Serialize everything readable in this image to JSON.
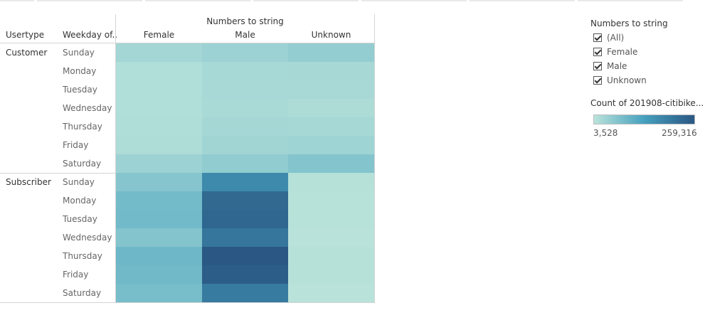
{
  "chart_data": {
    "type": "heatmap",
    "title": "Numbers to string",
    "row_headers": [
      "Usertype",
      "Weekday of.."
    ],
    "columns": [
      "Female",
      "Male",
      "Unknown"
    ],
    "usertypes": [
      {
        "name": "Customer",
        "rows": [
          {
            "day": "Sunday",
            "values": [
              28000,
              36000,
              46000
            ]
          },
          {
            "day": "Monday",
            "values": [
              14000,
              23000,
              24000
            ]
          },
          {
            "day": "Tuesday",
            "values": [
              13000,
              22000,
              22000
            ]
          },
          {
            "day": "Wednesday",
            "values": [
              13000,
              20000,
              17000
            ]
          },
          {
            "day": "Thursday",
            "values": [
              15000,
              26000,
              25000
            ]
          },
          {
            "day": "Friday",
            "values": [
              16000,
              30000,
              33000
            ]
          },
          {
            "day": "Saturday",
            "values": [
              36000,
              48000,
              62000
            ]
          }
        ]
      },
      {
        "name": "Subscriber",
        "rows": [
          {
            "day": "Sunday",
            "values": [
              60000,
              170000,
              8000
            ]
          },
          {
            "day": "Monday",
            "values": [
              80000,
              228000,
              6000
            ]
          },
          {
            "day": "Tuesday",
            "values": [
              82000,
              232000,
              6000
            ]
          },
          {
            "day": "Wednesday",
            "values": [
              62000,
              205000,
              5000
            ]
          },
          {
            "day": "Thursday",
            "values": [
              88000,
              259316,
              7000
            ]
          },
          {
            "day": "Friday",
            "values": [
              84000,
              248000,
              7000
            ]
          },
          {
            "day": "Saturday",
            "values": [
              76000,
              196000,
              3528
            ]
          }
        ]
      }
    ],
    "color_scale": {
      "min": 3528,
      "max": 259316,
      "min_color": "#b9e3da",
      "max_color": "#2a5783"
    }
  },
  "legend": {
    "filter_title": "Numbers to string",
    "filter_items": [
      "(All)",
      "Female",
      "Male",
      "Unknown"
    ],
    "color_title": "Count of 201908-citibike...",
    "min_label": "3,528",
    "max_label": "259,316"
  }
}
